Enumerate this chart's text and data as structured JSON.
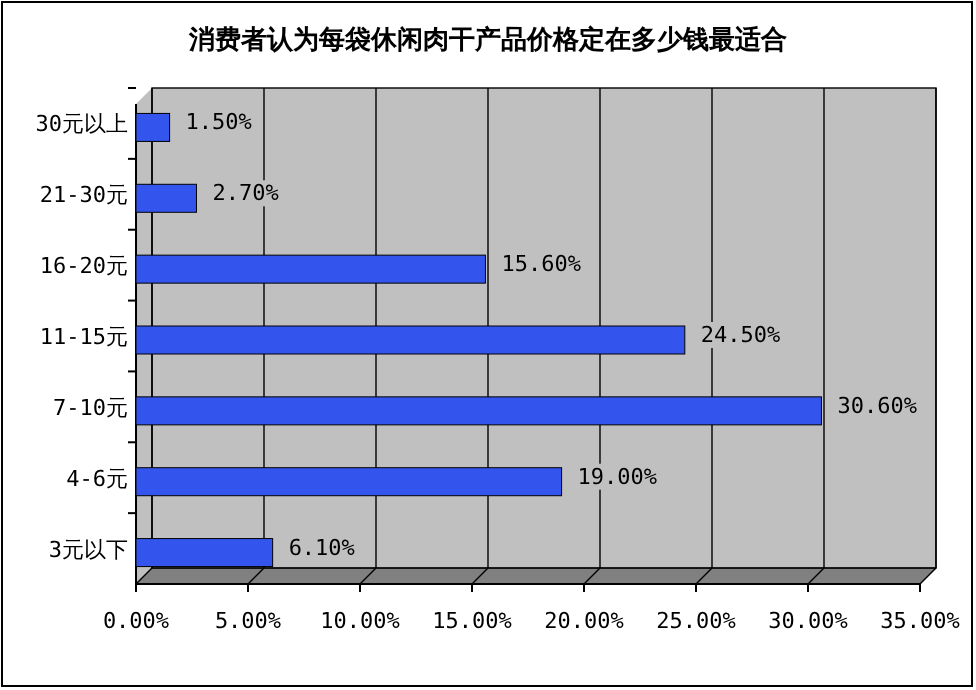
{
  "chart_data": {
    "type": "bar",
    "orientation": "horizontal",
    "title": "消费者认为每袋休闲肉干产品价格定在多少钱最适合",
    "categories": [
      "30元以上",
      "21-30元",
      "16-20元",
      "11-15元",
      "7-10元",
      "4-6元",
      "3元以下"
    ],
    "values": [
      1.5,
      2.7,
      15.6,
      24.5,
      30.6,
      19.0,
      6.1
    ],
    "value_labels": [
      "1.50%",
      "2.70%",
      "15.60%",
      "24.50%",
      "30.60%",
      "19.00%",
      "6.10%"
    ],
    "color": "#3355ee",
    "xlim": [
      0,
      35
    ],
    "xticks": [
      {
        "value": 0,
        "label": "0.00%"
      },
      {
        "value": 5,
        "label": "5.00%"
      },
      {
        "value": 10,
        "label": "10.00%"
      },
      {
        "value": 15,
        "label": "15.00%"
      },
      {
        "value": 20,
        "label": "20.00%"
      },
      {
        "value": 25,
        "label": "25.00%"
      },
      {
        "value": 30,
        "label": "30.00%"
      },
      {
        "value": 35,
        "label": "35.00%"
      }
    ],
    "grid": "x"
  }
}
